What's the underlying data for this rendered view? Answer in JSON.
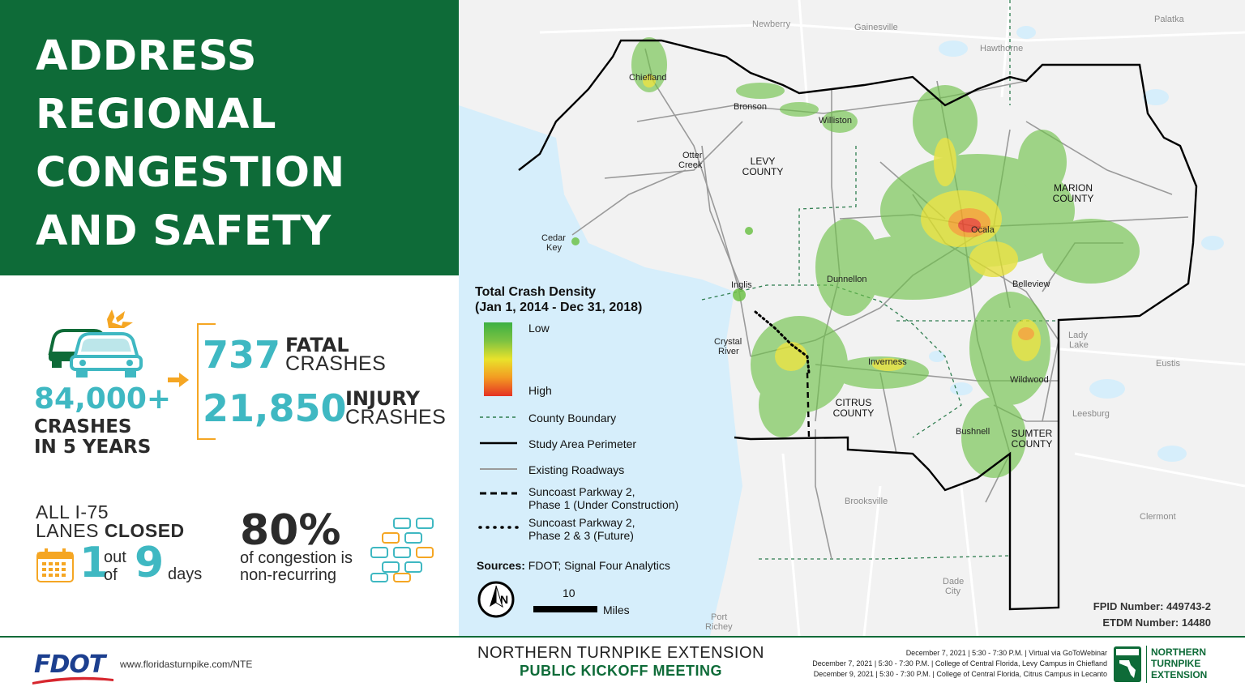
{
  "title": {
    "line1": "ADDRESS",
    "line2": "REGIONAL",
    "line3": "CONGESTION",
    "line4": "AND SAFETY"
  },
  "stats": {
    "crashes_total": "84,000+",
    "crashes_line1": "CRASHES",
    "crashes_line2": "IN 5 YEARS",
    "fatal_number": "737",
    "fatal_label1": "FATAL",
    "fatal_label2": "CRASHES",
    "injury_number": "21,850",
    "injury_label1": "INJURY",
    "injury_label2": "CRASHES",
    "closure_line1": "ALL I-75",
    "closure_line2_a": "LANES ",
    "closure_line2_b": "CLOSED",
    "closure_one": "1",
    "closure_out": "out",
    "closure_of": "of",
    "closure_nine": "9",
    "closure_days": "days",
    "congestion_pct": "80%",
    "congestion_line1": "of congestion is",
    "congestion_line2": "non-recurring"
  },
  "map": {
    "places": {
      "newberry": "Newberry",
      "gainesville": "Gainesville",
      "palatka": "Palatka",
      "hawthorne": "Hawthorne",
      "chiefland": "Chiefland",
      "bronson": "Bronson",
      "williston": "Williston",
      "otter_creek_1": "Otter",
      "otter_creek_2": "Creek",
      "cedar_key_1": "Cedar",
      "cedar_key_2": "Key",
      "ocala": "Ocala",
      "belleview": "Belleview",
      "dunnellon": "Dunnellon",
      "inglis": "Inglis",
      "crystal_river_1": "Crystal",
      "crystal_river_2": "River",
      "inverness": "Inverness",
      "lady_lake_1": "Lady",
      "lady_lake_2": "Lake",
      "eustis": "Eustis",
      "wildwood": "Wildwood",
      "leesburg": "Leesburg",
      "bushnell": "Bushnell",
      "clermont": "Clermont",
      "brooksville": "Brooksville",
      "dade_city_1": "Dade",
      "dade_city_2": "City",
      "port_richey_1": "Port",
      "port_richey_2": "Richey"
    },
    "counties": {
      "levy_1": "LEVY",
      "levy_2": "COUNTY",
      "marion_1": "MARION",
      "marion_2": "COUNTY",
      "citrus_1": "CITRUS",
      "citrus_2": "COUNTY",
      "sumter_1": "SUMTER",
      "sumter_2": "COUNTY"
    },
    "fpid": "FPID Number: 449743-2",
    "etdm": "ETDM Number: 14480"
  },
  "legend": {
    "title1": "Total Crash Density",
    "title2": "(Jan 1, 2014 - Dec 31, 2018)",
    "low": "Low",
    "high": "High",
    "county_boundary": "County Boundary",
    "study_area": "Study Area Perimeter",
    "roadways": "Existing Roadways",
    "suncoast1_a": "Suncoast Parkway 2,",
    "suncoast1_b": "Phase 1 (Under Construction)",
    "suncoast2_a": "Suncoast Parkway 2,",
    "suncoast2_b": "Phase 2 & 3 (Future)",
    "sources_label": "Sources:",
    "sources_value": " FDOT; Signal Four Analytics",
    "north": "N",
    "scale_value": "10",
    "scale_unit": "Miles"
  },
  "footer": {
    "fdot": "FDOT",
    "url": "www.floridasturnpike.com/NTE",
    "event_line1": "NORTHERN TURNPIKE EXTENSION",
    "event_line2": "PUBLIC KICKOFF MEETING",
    "meeting1": "December 7, 2021 | 5:30 - 7:30 P.M. | Virtual via GoToWebinar",
    "meeting2": "December 7, 2021 | 5:30 - 7:30 P.M. | College of Central Florida, Levy Campus in Chiefland",
    "meeting3": "December 9, 2021 | 5:30 - 7:30 P.M. | College of Central Florida, Citrus Campus in Lecanto",
    "brand1": "NORTHERN",
    "brand2": "TURNPIKE",
    "brand3": "EXTENSION"
  },
  "colors": {
    "brand_green": "#0e6b38",
    "teal": "#3fb8c2",
    "orange": "#f5a623",
    "water": "#d6eefb"
  }
}
